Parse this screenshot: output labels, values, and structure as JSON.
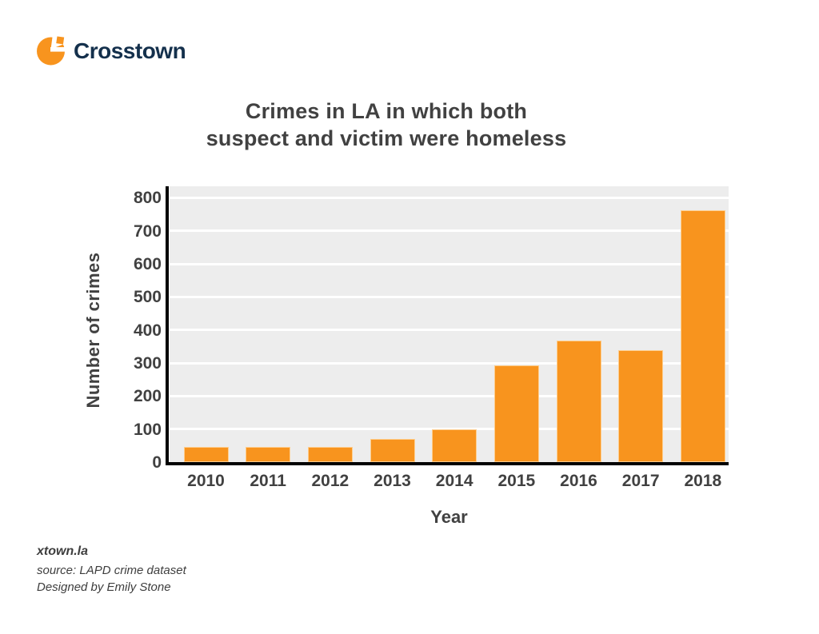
{
  "brand": {
    "name": "Crosstown"
  },
  "title": {
    "line1": "Crimes in LA in which both",
    "line2": "suspect and victim were homeless"
  },
  "chart_data": {
    "type": "bar",
    "title": "Crimes in LA in which both suspect and victim were homeless",
    "categories": [
      "2010",
      "2011",
      "2012",
      "2013",
      "2014",
      "2015",
      "2016",
      "2017",
      "2018"
    ],
    "values": [
      45,
      46,
      47,
      70,
      100,
      292,
      368,
      340,
      762
    ],
    "xlabel": "Year",
    "ylabel": "Number of crimes",
    "yticks": [
      0,
      100,
      200,
      300,
      400,
      500,
      600,
      700,
      800
    ],
    "ylim": [
      0,
      800
    ],
    "grid": true,
    "legend": "none",
    "bar_color": "#F8941E",
    "plot_background": "#EDEDED",
    "gridline_color": "#FFFFFF",
    "axis_color": "#000000",
    "tick_text_color": "#414141"
  },
  "footer": {
    "site": "xtown.la",
    "source": "source: LAPD crime dataset",
    "credit": "Designed by Emily Stone"
  },
  "colors": {
    "accent_orange": "#F8941E",
    "brand_navy": "#14304C",
    "text_gray": "#414141",
    "plot_background": "#EDEDED",
    "gridline": "#FFFFFF",
    "axis_black": "#000000"
  }
}
